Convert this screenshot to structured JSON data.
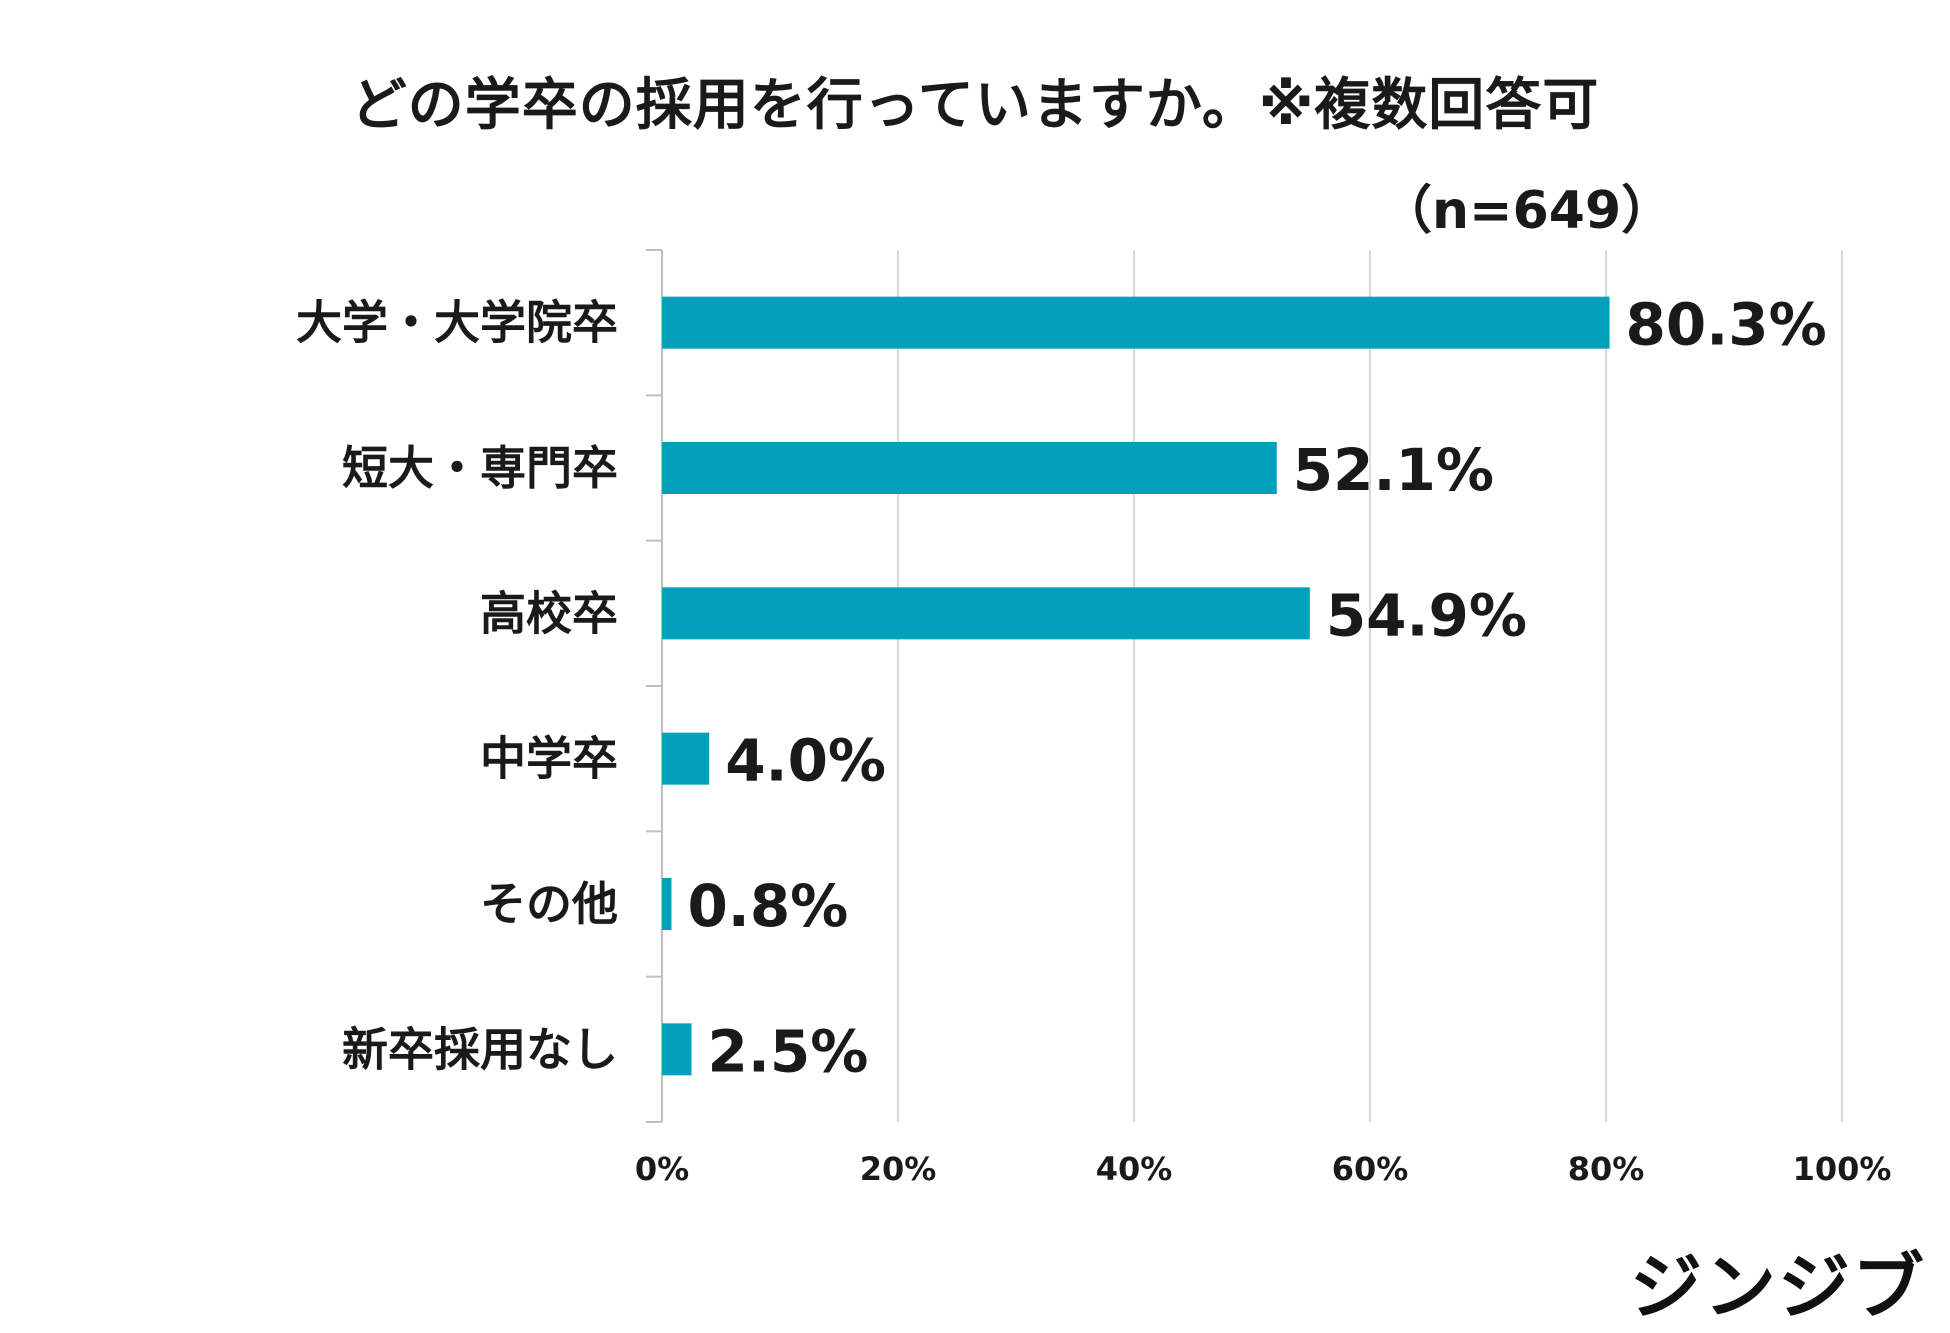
{
  "chart_data": {
    "type": "bar",
    "orientation": "horizontal",
    "title": "どの学卒の採用を行っていますか。※複数回答可",
    "subtitle": "（n=649）",
    "categories": [
      "大学・大学院卒",
      "短大・専門卒",
      "高校卒",
      "中学卒",
      "その他",
      "新卒採用なし"
    ],
    "values": [
      80.3,
      52.1,
      54.9,
      4.0,
      0.8,
      2.5
    ],
    "value_labels": [
      "80.3%",
      "52.1%",
      "54.9%",
      "4.0%",
      "0.8%",
      "2.5%"
    ],
    "xlim": [
      0,
      100
    ],
    "x_ticks": [
      "0%",
      "20%",
      "40%",
      "60%",
      "80%",
      "100%"
    ],
    "grid": "vertical",
    "bar_color": "#009fba",
    "grid_color": "#d9d9d9"
  },
  "brand": {
    "logo_text": "ジンジブ"
  }
}
